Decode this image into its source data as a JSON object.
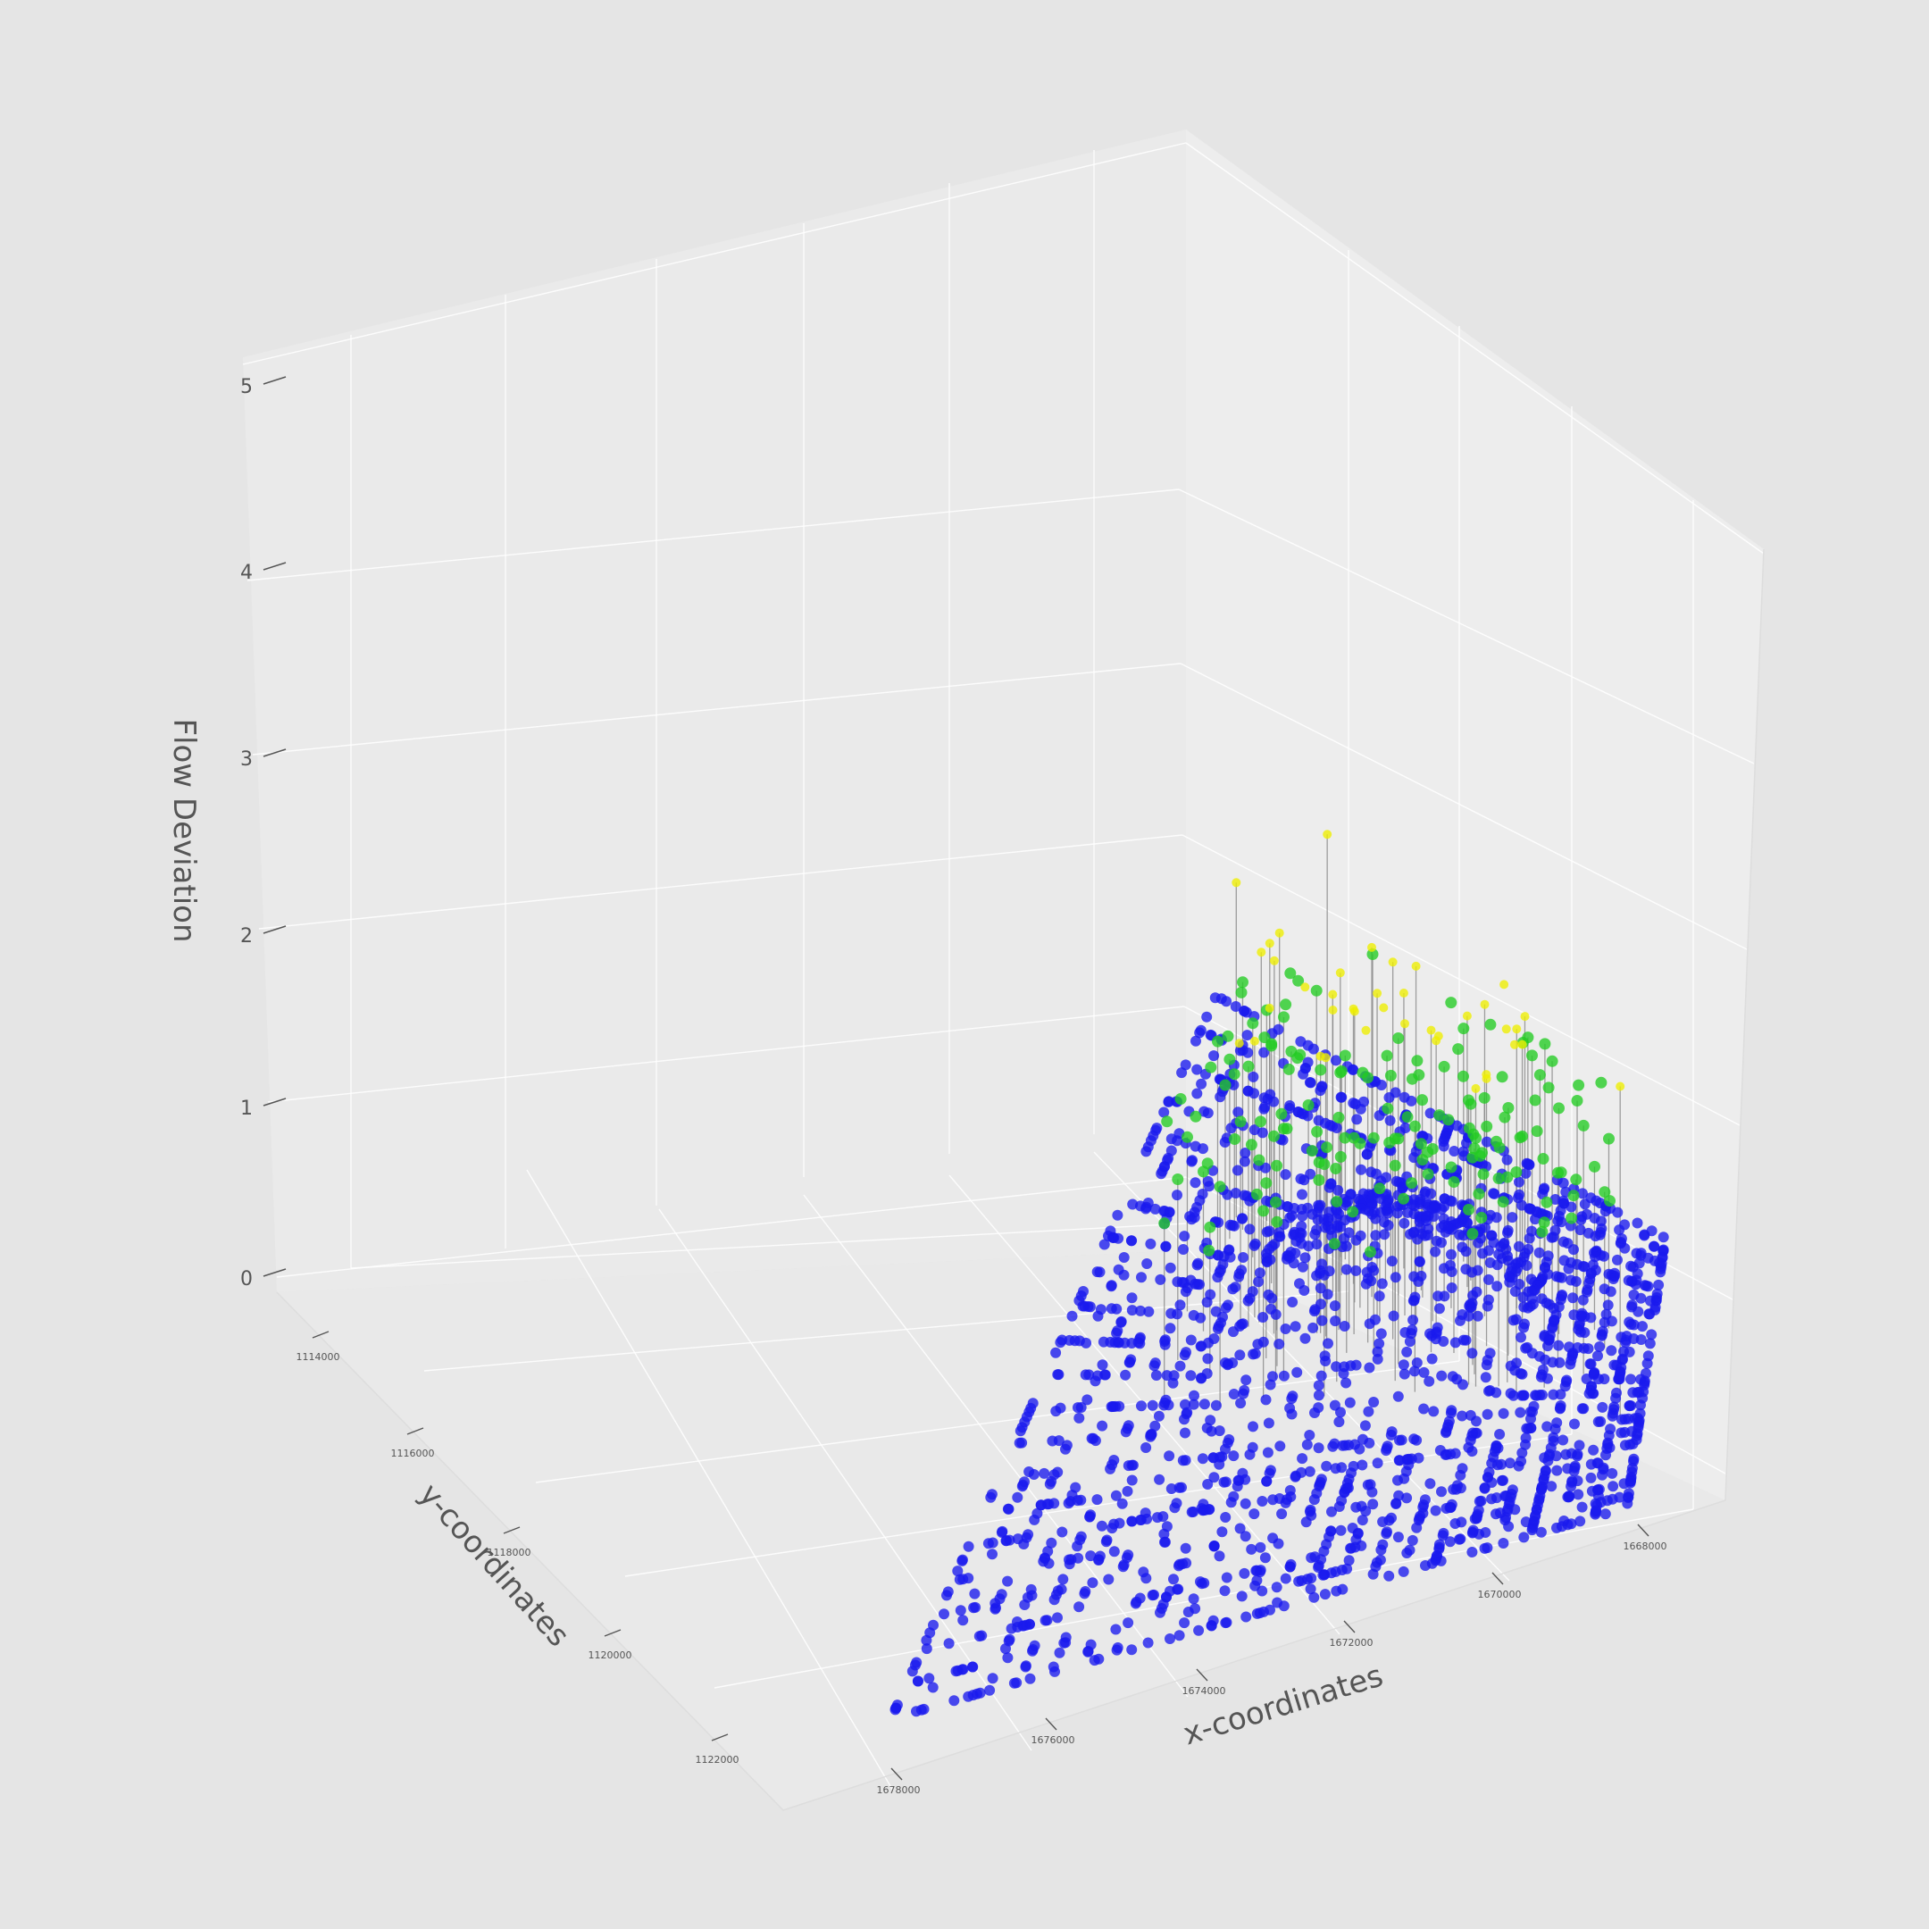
{
  "chart_data": {
    "type": "scatter",
    "projection": "3d",
    "xlabel": "x-coordinates",
    "ylabel": "y-coordinates",
    "zlabel": "Flow Deviation",
    "x_ticks": [
      "1668000",
      "1670000",
      "1672000",
      "1674000",
      "1676000",
      "1678000"
    ],
    "y_ticks": [
      "1114000",
      "1116000",
      "1118000",
      "1120000",
      "1122000"
    ],
    "z_ticks": [
      "0",
      "1",
      "2",
      "3",
      "4",
      "5"
    ],
    "xlim": [
      1667000,
      1679000
    ],
    "ylim": [
      1113000,
      1123000
    ],
    "zlim": [
      0,
      5
    ],
    "grid": true,
    "colors": {
      "background": "#e5e5e5",
      "pane": "#ececec",
      "grid": "#ffffff",
      "low": "#1a1aee",
      "mid": "#22cc22",
      "high": "#eeee00",
      "stem": "#888888",
      "text": "#555555"
    },
    "series": [
      {
        "color": "#1a1aee",
        "approx_count": 2000,
        "z_range": [
          0,
          0.7
        ],
        "extent": {
          "x": [
            1668300,
            1678000
          ],
          "y": [
            1113400,
            1122200
          ]
        }
      },
      {
        "color": "#22cc22",
        "approx_count": 160,
        "z_range": [
          0.7,
          1.5
        ]
      },
      {
        "color": "#eeee00",
        "approx_count": 40,
        "z_range": [
          1.5,
          2.6
        ],
        "points": [
          {
            "x": 1673900,
            "y": 1116800,
            "z": 2.55
          },
          {
            "x": 1676000,
            "y": 1115800,
            "z": 1.82
          },
          {
            "x": 1672600,
            "y": 1117300,
            "z": 2.05
          },
          {
            "x": 1668600,
            "y": 1119200,
            "z": 1.8
          },
          {
            "x": 1672300,
            "y": 1117000,
            "z": 1.95
          },
          {
            "x": 1673200,
            "y": 1116600,
            "z": 1.9
          },
          {
            "x": 1671900,
            "y": 1117500,
            "z": 1.75
          },
          {
            "x": 1673000,
            "y": 1116900,
            "z": 1.75
          },
          {
            "x": 1675100,
            "y": 1116200,
            "z": 1.6
          },
          {
            "x": 1671000,
            "y": 1118200,
            "z": 1.62
          }
        ]
      }
    ]
  }
}
